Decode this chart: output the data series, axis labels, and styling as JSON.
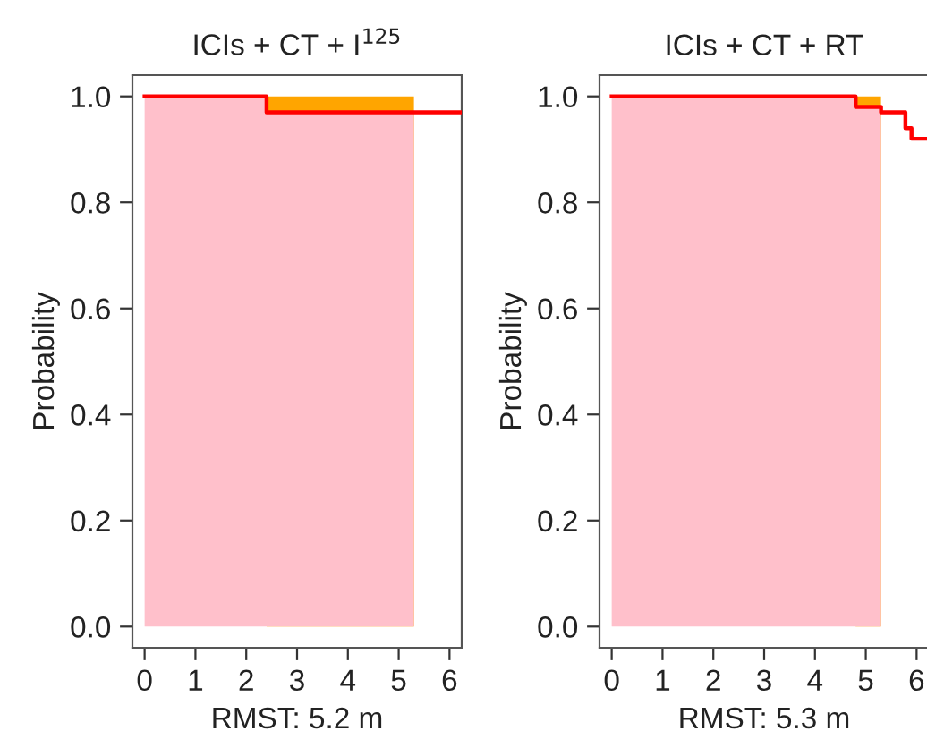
{
  "chart_data": [
    {
      "type": "area",
      "title": "ICIs + CT + I$^{125}$",
      "xlabel": "RMST: 5.2 m",
      "ylabel": "Probability",
      "series": [
        {
          "type": "area",
          "color": "#ffa500",
          "x": [
            2.4,
            5.3
          ],
          "values": [
            1.0,
            1.0
          ]
        },
        {
          "type": "area",
          "color": "#ffc0cb",
          "x": [
            0,
            2.4,
            2.4,
            5.3
          ],
          "values": [
            1.0,
            1.0,
            0.97,
            0.97
          ]
        },
        {
          "type": "step",
          "color": "#ff0000",
          "x": [
            0,
            2.4,
            6.24
          ],
          "values": [
            1.0,
            0.97,
            0.97
          ]
        }
      ],
      "xlim": [
        -0.24,
        6.24
      ],
      "ylim": [
        -0.04,
        1.04
      ],
      "xticks": [
        0,
        1,
        2,
        3,
        4,
        5,
        6
      ],
      "yticks": [
        {
          "value": 0,
          "label": "0.0"
        },
        {
          "value": 0.2,
          "label": "0.2"
        },
        {
          "value": 0.4,
          "label": "0.4"
        },
        {
          "value": 0.6,
          "label": "0.6"
        },
        {
          "value": 0.8,
          "label": "0.8"
        },
        {
          "value": 1,
          "label": "1.0"
        }
      ]
    },
    {
      "type": "area",
      "title": "ICIs + CT + RT",
      "xlabel": "RMST: 5.3 m",
      "ylabel": "Probability",
      "series": [
        {
          "type": "area",
          "color": "#ffa500",
          "x": [
            4.8,
            5.3
          ],
          "values": [
            1.0,
            1.0
          ]
        },
        {
          "type": "area",
          "color": "#ffc0cb",
          "x": [
            0,
            4.8,
            4.8,
            5.3
          ],
          "values": [
            1.0,
            1.0,
            0.98,
            0.98
          ]
        },
        {
          "type": "step",
          "color": "#ff0000",
          "x": [
            0,
            4.8,
            5.3,
            5.78,
            5.9,
            6.24
          ],
          "values": [
            1.0,
            0.98,
            0.97,
            0.94,
            0.92,
            0.92
          ]
        }
      ],
      "xlim": [
        -0.24,
        6.24
      ],
      "ylim": [
        -0.04,
        1.04
      ],
      "xticks": [
        0,
        1,
        2,
        3,
        4,
        5,
        6
      ],
      "yticks": [
        {
          "value": 0,
          "label": "0.0"
        },
        {
          "value": 0.2,
          "label": "0.2"
        },
        {
          "value": 0.4,
          "label": "0.4"
        },
        {
          "value": 0.6,
          "label": "0.6"
        },
        {
          "value": 0.8,
          "label": "0.8"
        },
        {
          "value": 1,
          "label": "1.0"
        }
      ]
    }
  ]
}
